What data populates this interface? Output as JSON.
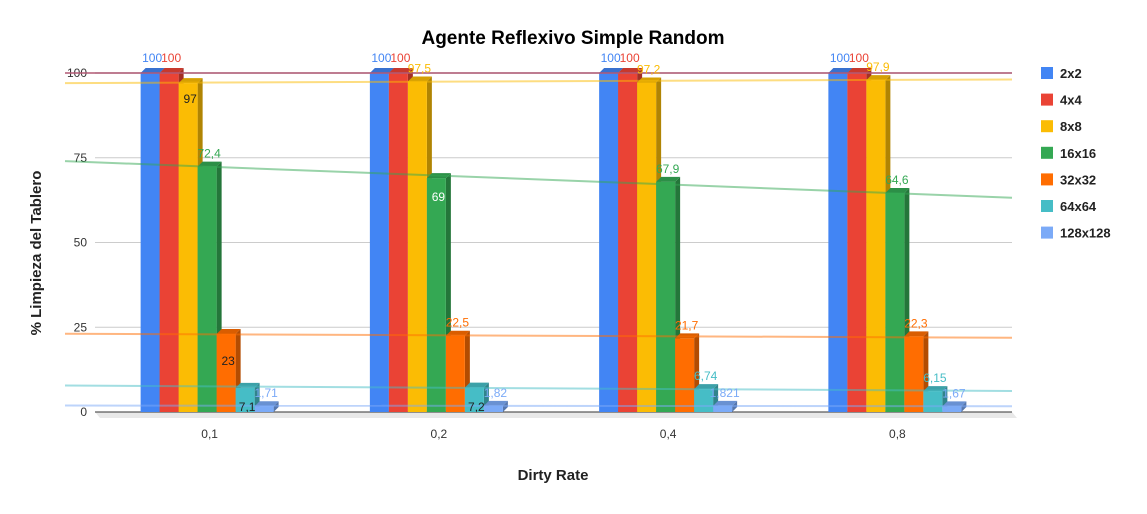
{
  "chart_data": {
    "type": "bar",
    "title": "Agente Reflexivo Simple Random",
    "xlabel": "Dirty Rate",
    "ylabel": "% Limpieza del Tablero",
    "categories": [
      "0,1",
      "0,2",
      "0,4",
      "0,8"
    ],
    "ylim": [
      0,
      100
    ],
    "yticks": [
      "0",
      "25",
      "50",
      "75",
      "100"
    ],
    "grid": true,
    "legend_position": "right",
    "series": [
      {
        "name": "2x2",
        "color": "#4285f4",
        "values": [
          100,
          100,
          100,
          100
        ],
        "labels": [
          "100",
          "100",
          "100",
          "100"
        ],
        "trend": [
          100,
          100
        ]
      },
      {
        "name": "4x4",
        "color": "#ea4335",
        "values": [
          100,
          100,
          100,
          100
        ],
        "labels": [
          "100",
          "100",
          "100",
          "100"
        ],
        "trend": [
          100,
          100
        ]
      },
      {
        "name": "8x8",
        "color": "#fbbc04",
        "values": [
          97,
          97.5,
          97.2,
          97.9
        ],
        "labels": [
          "97",
          "97,5",
          "97,2",
          "97,9"
        ],
        "trend": [
          97,
          98.1
        ]
      },
      {
        "name": "16x16",
        "color": "#34a853",
        "values": [
          72.4,
          69,
          67.9,
          64.6
        ],
        "labels": [
          "72,4",
          "69",
          "67,9",
          "64,6"
        ],
        "trend": [
          74,
          63.2
        ]
      },
      {
        "name": "32x32",
        "color": "#ff6d01",
        "values": [
          23,
          22.5,
          21.7,
          22.3
        ],
        "labels": [
          "23",
          "22,5",
          "21,7",
          "22,3"
        ],
        "trend": [
          23.1,
          21.9
        ]
      },
      {
        "name": "64x64",
        "color": "#46bdc6",
        "values": [
          7.1,
          7.2,
          6.74,
          6.15
        ],
        "labels": [
          "7,1",
          "7,2",
          "6,74",
          "6,15"
        ],
        "trend": [
          7.8,
          6.2
        ]
      },
      {
        "name": "128x128",
        "color": "#7baaf7",
        "values": [
          1.71,
          1.82,
          1.821,
          1.67
        ],
        "labels": [
          "1,71",
          "1,82",
          "1,821",
          "1,67"
        ],
        "trend": [
          1.9,
          1.7
        ]
      }
    ]
  }
}
